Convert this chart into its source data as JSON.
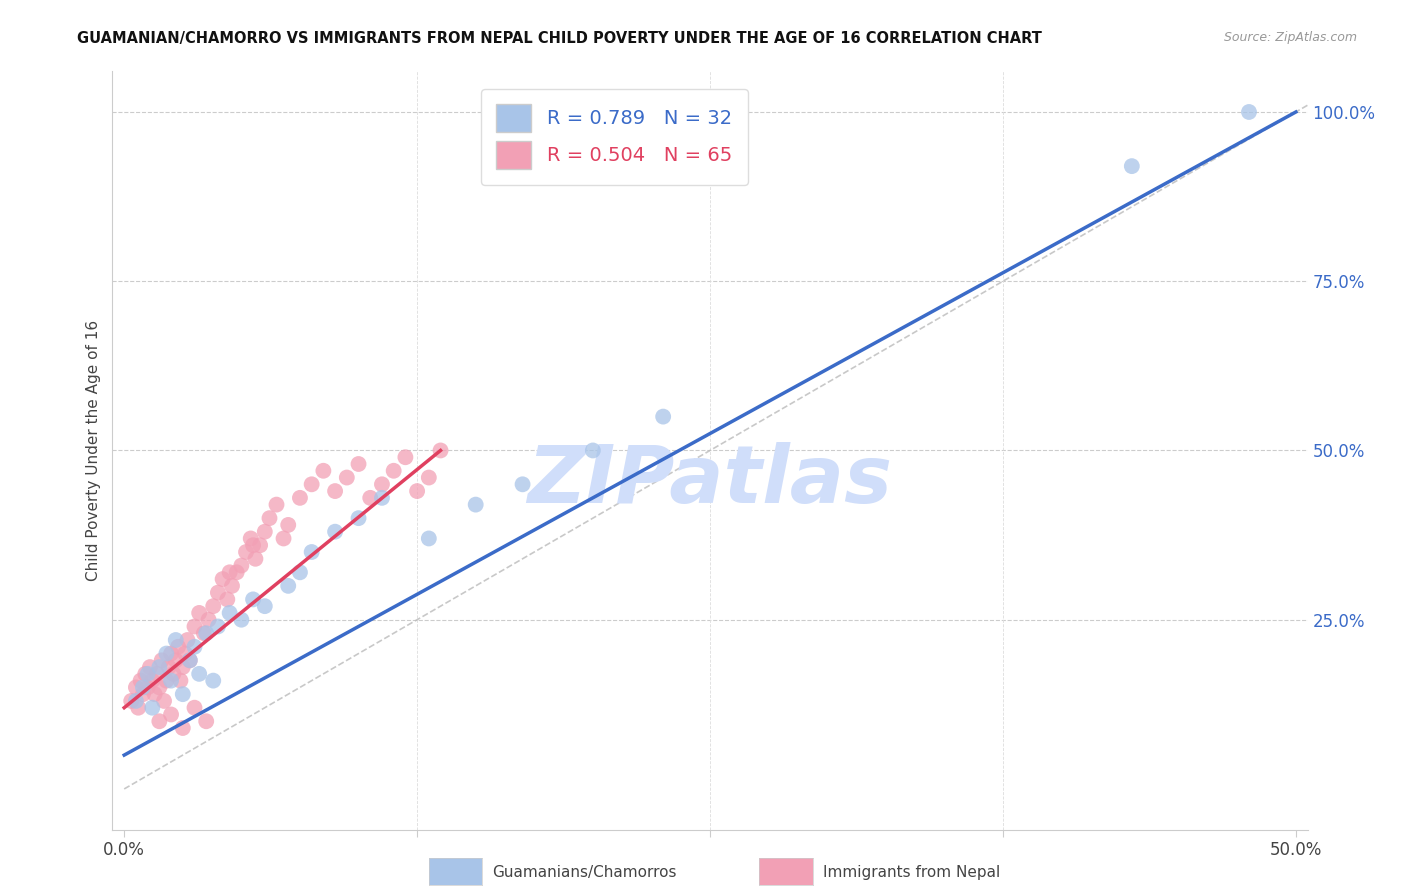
{
  "title": "GUAMANIAN/CHAMORRO VS IMMIGRANTS FROM NEPAL CHILD POVERTY UNDER THE AGE OF 16 CORRELATION CHART",
  "source": "Source: ZipAtlas.com",
  "ylabel_label": "Child Poverty Under the Age of 16",
  "legend_label1": "Guamanians/Chamorros",
  "legend_label2": "Immigrants from Nepal",
  "R1": 0.789,
  "N1": 32,
  "R2": 0.504,
  "N2": 65,
  "color_blue": "#A8C4E8",
  "color_pink": "#F2A0B5",
  "color_line_blue": "#3B6BC8",
  "color_line_pink": "#E04060",
  "watermark": "ZIPatlas",
  "watermark_color": "#D0DEFA",
  "xlim": [
    -0.005,
    0.505
  ],
  "ylim": [
    -0.06,
    1.06
  ],
  "blue_x": [
    0.005,
    0.008,
    0.01,
    0.012,
    0.015,
    0.018,
    0.02,
    0.022,
    0.025,
    0.028,
    0.03,
    0.032,
    0.035,
    0.038,
    0.04,
    0.045,
    0.05,
    0.055,
    0.06,
    0.07,
    0.075,
    0.08,
    0.09,
    0.1,
    0.11,
    0.13,
    0.15,
    0.17,
    0.2,
    0.23,
    0.43,
    0.48
  ],
  "blue_y": [
    0.13,
    0.15,
    0.17,
    0.12,
    0.18,
    0.2,
    0.16,
    0.22,
    0.14,
    0.19,
    0.21,
    0.17,
    0.23,
    0.16,
    0.24,
    0.26,
    0.25,
    0.28,
    0.27,
    0.3,
    0.32,
    0.35,
    0.38,
    0.4,
    0.43,
    0.37,
    0.42,
    0.45,
    0.5,
    0.55,
    0.92,
    1.0
  ],
  "pink_x": [
    0.003,
    0.005,
    0.006,
    0.007,
    0.008,
    0.009,
    0.01,
    0.011,
    0.012,
    0.013,
    0.014,
    0.015,
    0.016,
    0.017,
    0.018,
    0.019,
    0.02,
    0.021,
    0.022,
    0.023,
    0.024,
    0.025,
    0.026,
    0.027,
    0.028,
    0.03,
    0.032,
    0.034,
    0.036,
    0.038,
    0.04,
    0.042,
    0.044,
    0.046,
    0.048,
    0.05,
    0.052,
    0.054,
    0.056,
    0.058,
    0.06,
    0.062,
    0.065,
    0.068,
    0.07,
    0.075,
    0.08,
    0.085,
    0.09,
    0.095,
    0.1,
    0.105,
    0.11,
    0.115,
    0.12,
    0.125,
    0.13,
    0.135,
    0.055,
    0.045,
    0.015,
    0.02,
    0.025,
    0.03,
    0.035
  ],
  "pink_y": [
    0.13,
    0.15,
    0.12,
    0.16,
    0.14,
    0.17,
    0.15,
    0.18,
    0.16,
    0.14,
    0.17,
    0.15,
    0.19,
    0.13,
    0.16,
    0.18,
    0.2,
    0.17,
    0.19,
    0.21,
    0.16,
    0.18,
    0.2,
    0.22,
    0.19,
    0.24,
    0.26,
    0.23,
    0.25,
    0.27,
    0.29,
    0.31,
    0.28,
    0.3,
    0.32,
    0.33,
    0.35,
    0.37,
    0.34,
    0.36,
    0.38,
    0.4,
    0.42,
    0.37,
    0.39,
    0.43,
    0.45,
    0.47,
    0.44,
    0.46,
    0.48,
    0.43,
    0.45,
    0.47,
    0.49,
    0.44,
    0.46,
    0.5,
    0.36,
    0.32,
    0.1,
    0.11,
    0.09,
    0.12,
    0.1
  ],
  "blue_line_x": [
    0.0,
    0.5
  ],
  "blue_line_y": [
    0.05,
    1.0
  ],
  "pink_line_x": [
    0.0,
    0.135
  ],
  "pink_line_y": [
    0.12,
    0.5
  ]
}
